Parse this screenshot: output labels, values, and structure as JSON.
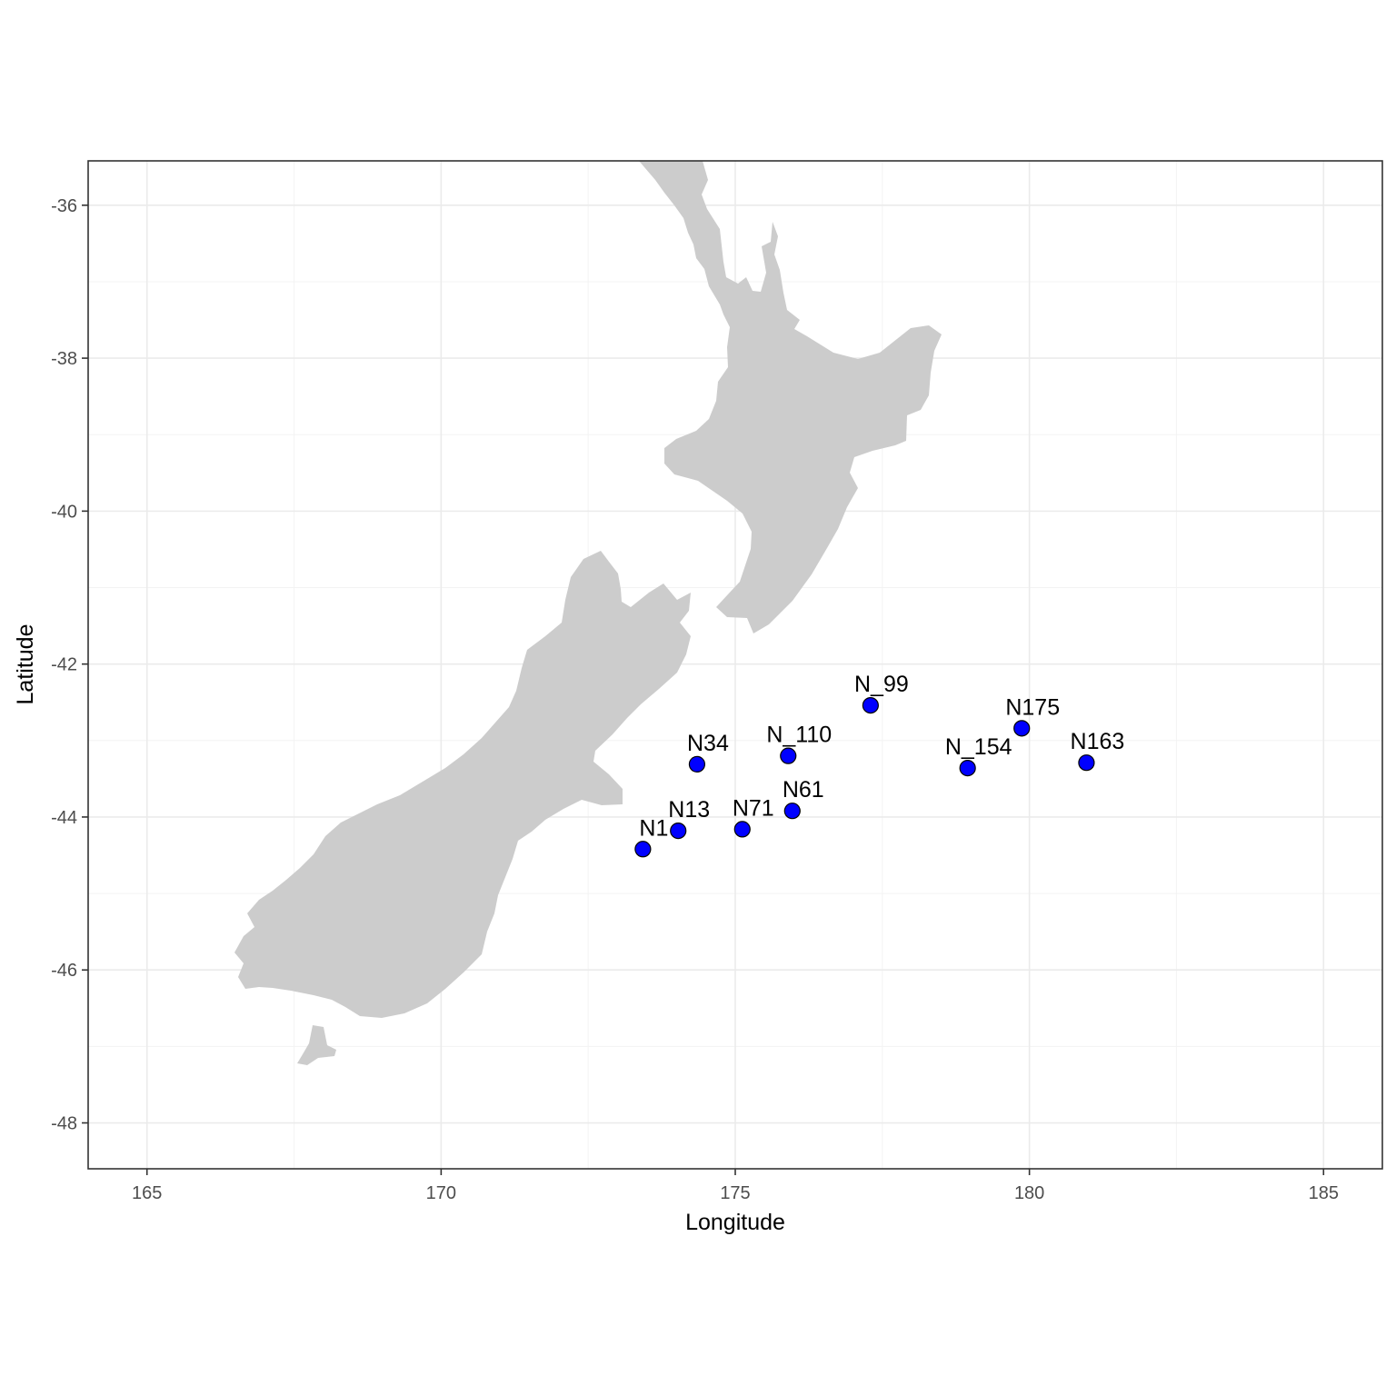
{
  "chart_data": {
    "type": "scatter",
    "xlabel": "Longitude",
    "ylabel": "Latitude",
    "xlim": [
      164.0,
      186.0
    ],
    "ylim": [
      -48.6,
      -35.42
    ],
    "x_ticks": [
      165,
      170,
      175,
      180,
      185
    ],
    "y_ticks": [
      -36,
      -38,
      -40,
      -42,
      -44,
      -46,
      -48
    ],
    "grid": true,
    "legend": "none",
    "colors": {
      "land": "#cccccc",
      "point_fill": "#0000ff",
      "point_stroke": "#000000",
      "grid": "#ebebeb",
      "panel_border": "#333333"
    },
    "points": [
      {
        "label": "N1",
        "lon": 173.43,
        "lat": -44.42
      },
      {
        "label": "N13",
        "lon": 174.03,
        "lat": -44.18
      },
      {
        "label": "N34",
        "lon": 174.35,
        "lat": -43.31
      },
      {
        "label": "N71",
        "lon": 175.12,
        "lat": -44.16
      },
      {
        "label": "N_110",
        "lon": 175.9,
        "lat": -43.2
      },
      {
        "label": "N61",
        "lon": 175.97,
        "lat": -43.92
      },
      {
        "label": "N_99",
        "lon": 177.3,
        "lat": -42.54
      },
      {
        "label": "N_154",
        "lon": 178.95,
        "lat": -43.36
      },
      {
        "label": "N175",
        "lon": 179.87,
        "lat": -42.84
      },
      {
        "label": "N163",
        "lon": 180.97,
        "lat": -43.29
      }
    ]
  }
}
